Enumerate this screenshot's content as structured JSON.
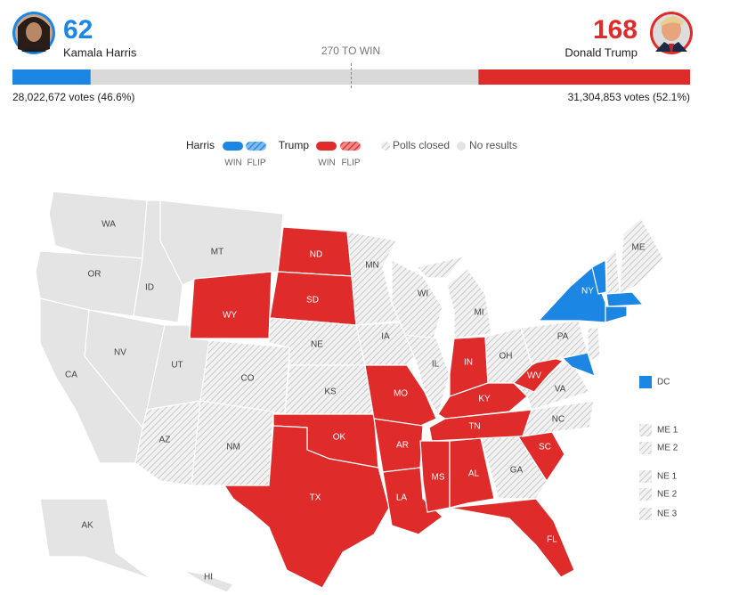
{
  "candidates": [
    {
      "name": "Kamala Harris",
      "electoral_votes": 62,
      "votes": "28,022,672 votes (46.6%)",
      "color": "#1b86e3"
    },
    {
      "name": "Donald Trump",
      "electoral_votes": 168,
      "votes": "31,304,853 votes (52.1%)",
      "color": "#e02b2b"
    }
  ],
  "bar": {
    "label": "270 TO WIN",
    "xlim": [
      0,
      538
    ]
  },
  "legend": [
    {
      "name": "Harris",
      "swatches": [
        "WIN",
        "FLIP"
      ]
    },
    {
      "name": "Trump",
      "swatches": [
        "WIN",
        "FLIP"
      ]
    },
    {
      "name": "Polls closed"
    },
    {
      "name": "No results"
    }
  ],
  "map": {
    "states": [
      {
        "label": "WA",
        "status": "none"
      },
      {
        "label": "OR",
        "status": "none"
      },
      {
        "label": "CA",
        "status": "none"
      },
      {
        "label": "NV",
        "status": "none"
      },
      {
        "label": "ID",
        "status": "none"
      },
      {
        "label": "MT",
        "status": "none"
      },
      {
        "label": "WY",
        "status": "trump"
      },
      {
        "label": "UT",
        "status": "none"
      },
      {
        "label": "CO",
        "status": "closed"
      },
      {
        "label": "AZ",
        "status": "closed"
      },
      {
        "label": "NM",
        "status": "closed"
      },
      {
        "label": "ND",
        "status": "trump"
      },
      {
        "label": "SD",
        "status": "trump"
      },
      {
        "label": "NE",
        "status": "closed"
      },
      {
        "label": "KS",
        "status": "closed"
      },
      {
        "label": "OK",
        "status": "trump"
      },
      {
        "label": "TX",
        "status": "trump"
      },
      {
        "label": "MN",
        "status": "closed"
      },
      {
        "label": "IA",
        "status": "closed"
      },
      {
        "label": "MO",
        "status": "trump"
      },
      {
        "label": "AR",
        "status": "trump"
      },
      {
        "label": "LA",
        "status": "trump"
      },
      {
        "label": "WI",
        "status": "closed"
      },
      {
        "label": "IL",
        "status": "closed"
      },
      {
        "label": "MI",
        "status": "closed"
      },
      {
        "label": "IN",
        "status": "trump"
      },
      {
        "label": "OH",
        "status": "closed"
      },
      {
        "label": "KY",
        "status": "trump"
      },
      {
        "label": "TN",
        "status": "trump"
      },
      {
        "label": "MS",
        "status": "trump"
      },
      {
        "label": "AL",
        "status": "trump"
      },
      {
        "label": "GA",
        "status": "closed"
      },
      {
        "label": "FL",
        "status": "trump"
      },
      {
        "label": "SC",
        "status": "trump"
      },
      {
        "label": "NC",
        "status": "closed"
      },
      {
        "label": "VA",
        "status": "closed"
      },
      {
        "label": "WV",
        "status": "trump"
      },
      {
        "label": "PA",
        "status": "closed"
      },
      {
        "label": "NY",
        "status": "harris"
      },
      {
        "label": null,
        "status": "harris"
      },
      {
        "label": null,
        "status": "closed"
      },
      {
        "label": "ME",
        "status": "closed"
      },
      {
        "label": null,
        "status": "harris"
      },
      {
        "label": null,
        "status": "harris"
      },
      {
        "label": null,
        "status": "closed"
      },
      {
        "label": null,
        "status": "harris"
      },
      {
        "label": "AK",
        "status": "none"
      },
      {
        "label": "HI",
        "status": "none"
      }
    ],
    "districts": [
      {
        "label": "DC",
        "status": "harris"
      },
      {
        "label": "ME 1",
        "status": "closed"
      },
      {
        "label": "ME 2",
        "status": "closed"
      },
      {
        "label": "NE 1",
        "status": "closed"
      },
      {
        "label": "NE 2",
        "status": "closed"
      },
      {
        "label": "NE 3",
        "status": "closed"
      }
    ]
  }
}
